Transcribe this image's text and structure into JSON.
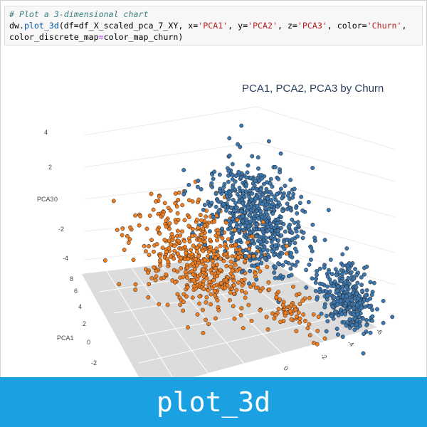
{
  "code": {
    "line1": "# Plot a 3-dimensional chart",
    "l2_obj": "dw.",
    "l2_func": "plot_3d",
    "l2_a": "(df=df_X_scaled_pca_7_XY, x=",
    "l2_x": "'PCA1'",
    "l2_b": ", y=",
    "l2_y": "'PCA2'",
    "l2_c": ", z=",
    "l2_z": "'PCA3'",
    "l2_d": ", color=",
    "l2_color": "'Churn'",
    "l2_e": ",",
    "l3_a": "color_discrete_map",
    "l3_eq": "=",
    "l3_b": "color_map_churn)"
  },
  "chart_data": {
    "type": "scatter",
    "title": "PCA1, PCA2, PCA3 by Churn",
    "z_axis": {
      "label": "PCA3",
      "ticks": [
        "4",
        "2",
        "0",
        "-2",
        "-4"
      ]
    },
    "x_axis": {
      "label": "PCA1",
      "ticks": [
        "8",
        "6",
        "4",
        "2",
        "0",
        "-2"
      ]
    },
    "y_axis": {
      "label": "",
      "ticks": [
        "-6",
        "-4",
        "-2",
        "0"
      ]
    },
    "colors": {
      "blue": "#3d78b0",
      "orange": "#f07f22",
      "floor": "#dcdcdc"
    },
    "series": [
      {
        "color": "blue",
        "clusters": [
          {
            "cx": 3.5,
            "cy": -1.0,
            "cz": 1.5,
            "sx": 1.5,
            "sy": 1.0,
            "sz": 1.4,
            "n": 650
          },
          {
            "cx": 5.5,
            "cy": -4.5,
            "cz": -1.5,
            "sx": 0.9,
            "sy": 0.6,
            "sz": 0.9,
            "n": 330
          }
        ]
      },
      {
        "color": "orange",
        "clusters": [
          {
            "cx": 3.5,
            "cy": 1.5,
            "cz": -1.5,
            "sx": 1.5,
            "sy": 1.3,
            "sz": 1.5,
            "n": 520
          },
          {
            "cx": 4.0,
            "cy": -2.5,
            "cz": -3.5,
            "sx": 0.8,
            "sy": 0.6,
            "sz": 0.5,
            "n": 60
          }
        ]
      }
    ]
  },
  "footer": {
    "label": "plot_3d"
  }
}
